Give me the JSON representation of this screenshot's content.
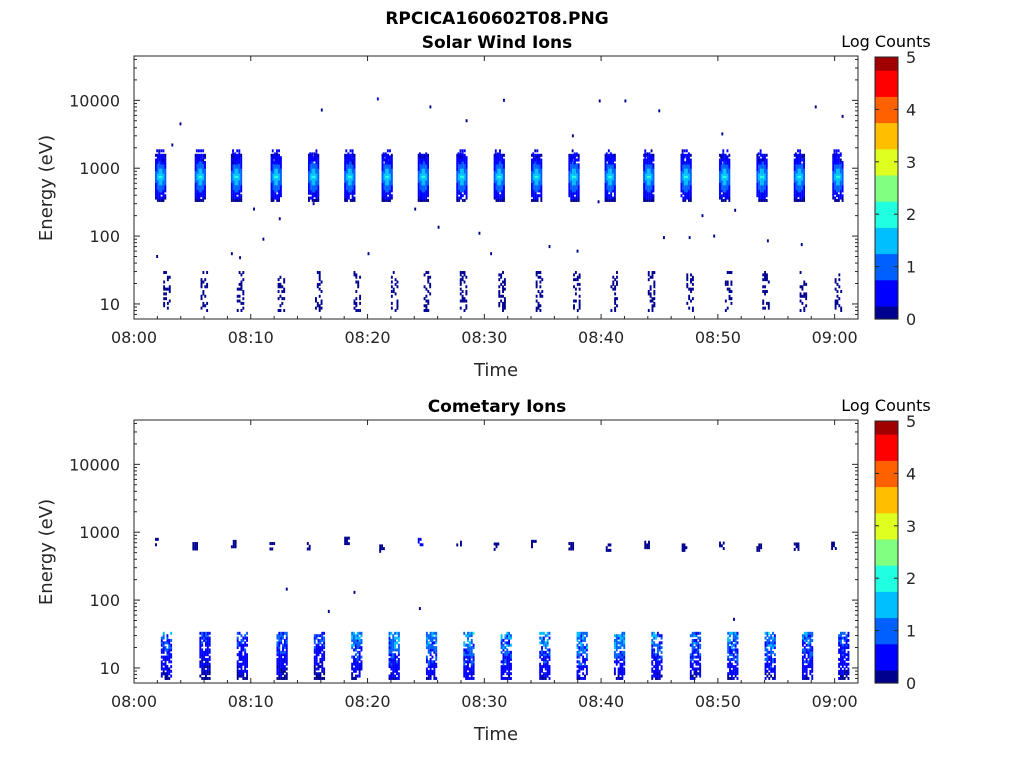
{
  "figure": {
    "title": "RPCICA160602T08.PNG"
  },
  "colormap": [
    "#00008f",
    "#0000ff",
    "#0060ff",
    "#00bfff",
    "#20ffdf",
    "#80ff80",
    "#dfff20",
    "#ffbf00",
    "#ff6000",
    "#ff0000",
    "#a00000"
  ],
  "chart_data": [
    {
      "type": "heatmap",
      "title": "Solar Wind Ions",
      "xlabel": "Time",
      "ylabel": "Energy (eV)",
      "yscale": "log",
      "ylim": [
        6,
        45000
      ],
      "xlim": [
        "08:00",
        "09:02"
      ],
      "xticks": [
        "08:00",
        "08:10",
        "08:20",
        "08:30",
        "08:40",
        "08:50",
        "09:00"
      ],
      "yticks": [
        "10",
        "100",
        "1000",
        "10000"
      ],
      "colorbar": {
        "label": "Log Counts",
        "ticks": [
          "0",
          "1",
          "2",
          "3",
          "4",
          "5"
        ],
        "range": [
          0,
          5
        ]
      },
      "proton_beam_times_min": [
        1.8,
        5.2,
        8.3,
        11.7,
        14.9,
        18.0,
        21.2,
        24.3,
        27.6,
        30.8,
        34.0,
        37.2,
        40.3,
        43.6,
        46.8,
        50.1,
        53.3,
        56.5,
        59.8
      ],
      "proton_beam_center_eV": 750,
      "proton_beam_peak_log_counts": 2.0,
      "alpha_beam_center_eV": 1500,
      "low_energy_bursts_times_min": [
        2.5,
        5.7,
        8.8,
        12.3,
        15.5,
        18.8,
        22.0,
        24.8,
        27.9,
        31.2,
        34.4,
        37.6,
        40.8,
        44.0,
        47.3,
        50.6,
        53.8,
        57.0,
        60.0
      ],
      "low_energy_range_eV": [
        8,
        30
      ],
      "background_points": [
        {
          "t": 3.9,
          "e": 4500,
          "c": 0.2
        },
        {
          "t": 16.0,
          "e": 7200,
          "c": 0.2
        },
        {
          "t": 20.8,
          "e": 10500,
          "c": 0.3
        },
        {
          "t": 25.3,
          "e": 8000,
          "c": 0.2
        },
        {
          "t": 28.4,
          "e": 5000,
          "c": 0.2
        },
        {
          "t": 31.6,
          "e": 10000,
          "c": 0.2
        },
        {
          "t": 39.8,
          "e": 9800,
          "c": 0.2
        },
        {
          "t": 42.0,
          "e": 9800,
          "c": 0.2
        },
        {
          "t": 44.9,
          "e": 7000,
          "c": 0.2
        },
        {
          "t": 58.3,
          "e": 8000,
          "c": 0.2
        },
        {
          "t": 60.6,
          "e": 5800,
          "c": 0.2
        },
        {
          "t": 37.5,
          "e": 3000,
          "c": 0.2
        },
        {
          "t": 50.3,
          "e": 3200,
          "c": 0.2
        },
        {
          "t": 3.2,
          "e": 2200,
          "c": 0.2
        },
        {
          "t": 12.4,
          "e": 180,
          "c": 0.2
        },
        {
          "t": 10.2,
          "e": 250,
          "c": 0.2
        },
        {
          "t": 15.3,
          "e": 300,
          "c": 0.2
        },
        {
          "t": 24.0,
          "e": 250,
          "c": 0.2
        },
        {
          "t": 26.0,
          "e": 135,
          "c": 0.2
        },
        {
          "t": 29.5,
          "e": 110,
          "c": 0.2
        },
        {
          "t": 30.5,
          "e": 55,
          "c": 0.2
        },
        {
          "t": 35.5,
          "e": 70,
          "c": 0.2
        },
        {
          "t": 37.9,
          "e": 60,
          "c": 0.2
        },
        {
          "t": 39.7,
          "e": 320,
          "c": 0.2
        },
        {
          "t": 45.3,
          "e": 95,
          "c": 0.2
        },
        {
          "t": 47.5,
          "e": 95,
          "c": 0.2
        },
        {
          "t": 48.6,
          "e": 200,
          "c": 0.2
        },
        {
          "t": 49.6,
          "e": 100,
          "c": 0.2
        },
        {
          "t": 51.4,
          "e": 240,
          "c": 0.2
        },
        {
          "t": 54.2,
          "e": 85,
          "c": 0.2
        },
        {
          "t": 57.1,
          "e": 75,
          "c": 0.2
        },
        {
          "t": 8.3,
          "e": 55,
          "c": 0.2
        },
        {
          "t": 9.0,
          "e": 48,
          "c": 0.2
        },
        {
          "t": 20.0,
          "e": 55,
          "c": 0.2
        },
        {
          "t": 11.0,
          "e": 90,
          "c": 0.2
        },
        {
          "t": 1.9,
          "e": 50,
          "c": 0.2
        }
      ]
    },
    {
      "type": "heatmap",
      "title": "Cometary Ions",
      "xlabel": "Time",
      "ylabel": "Energy (eV)",
      "yscale": "log",
      "ylim": [
        6,
        45000
      ],
      "xlim": [
        "08:00",
        "09:02"
      ],
      "xticks": [
        "08:00",
        "08:10",
        "08:20",
        "08:30",
        "08:40",
        "08:50",
        "09:00"
      ],
      "yticks": [
        "10",
        "100",
        "1000",
        "10000"
      ],
      "colorbar": {
        "label": "Log Counts",
        "ticks": [
          "0",
          "1",
          "2",
          "3",
          "4",
          "5"
        ],
        "range": [
          0,
          5
        ]
      },
      "low_energy_bursts_times_min": [
        2.3,
        5.6,
        8.8,
        12.2,
        15.4,
        18.6,
        21.8,
        25.0,
        28.2,
        31.4,
        34.7,
        37.9,
        41.1,
        44.3,
        47.6,
        50.8,
        54.0,
        57.2,
        60.3
      ],
      "low_energy_peak_log_counts": [
        1.4,
        1.0,
        1.2,
        1.3,
        1.2,
        1.7,
        1.8,
        1.8,
        1.9,
        1.9,
        1.8,
        2.0,
        1.9,
        1.7,
        1.6,
        1.8,
        1.9,
        1.8,
        1.4
      ],
      "low_energy_range_eV": [
        7,
        35
      ],
      "mid_energy_spots": [
        {
          "t": 1.8,
          "e": 750,
          "c": 0.2
        },
        {
          "t": 5.0,
          "e": 650,
          "c": 0.1
        },
        {
          "t": 8.3,
          "e": 700,
          "c": 0.2
        },
        {
          "t": 11.6,
          "e": 650,
          "c": 0.1
        },
        {
          "t": 14.8,
          "e": 650,
          "c": 0.2
        },
        {
          "t": 18.0,
          "e": 780,
          "c": 0.2
        },
        {
          "t": 21.0,
          "e": 600,
          "c": 0.1
        },
        {
          "t": 24.3,
          "e": 750,
          "c": 0.3
        },
        {
          "t": 27.6,
          "e": 680,
          "c": 0.2
        },
        {
          "t": 30.8,
          "e": 640,
          "c": 0.2
        },
        {
          "t": 34.0,
          "e": 700,
          "c": 0.2
        },
        {
          "t": 37.2,
          "e": 650,
          "c": 0.2
        },
        {
          "t": 40.4,
          "e": 620,
          "c": 0.2
        },
        {
          "t": 43.7,
          "e": 680,
          "c": 0.2
        },
        {
          "t": 46.9,
          "e": 620,
          "c": 0.1
        },
        {
          "t": 50.1,
          "e": 660,
          "c": 0.1
        },
        {
          "t": 53.3,
          "e": 620,
          "c": 0.2
        },
        {
          "t": 56.5,
          "e": 640,
          "c": 0.1
        },
        {
          "t": 59.7,
          "e": 660,
          "c": 0.2
        }
      ],
      "background_points": [
        {
          "t": 13.0,
          "e": 145,
          "c": 0.2
        },
        {
          "t": 16.6,
          "e": 68,
          "c": 0.2
        },
        {
          "t": 18.8,
          "e": 130,
          "c": 0.2
        },
        {
          "t": 24.4,
          "e": 75,
          "c": 0.2
        },
        {
          "t": 51.3,
          "e": 52,
          "c": 0.2
        }
      ]
    }
  ]
}
